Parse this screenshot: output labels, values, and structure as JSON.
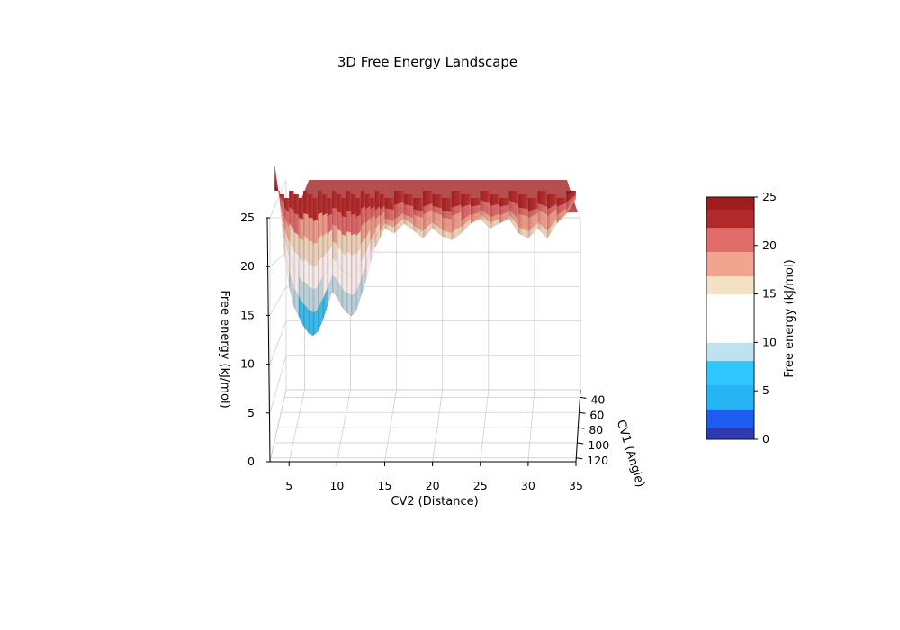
{
  "chart_data": {
    "type": "surface",
    "title": "3D Free Energy Landscape",
    "xlabel": "CV2 (Distance)",
    "ylabel": "CV1 (Angle)",
    "zlabel": "Free energy (kJ/mol)",
    "colorbar_label": "Free energy (kJ/mol)",
    "colormap": [
      "#2e3bb0",
      "#1f5cf0",
      "#26b4f2",
      "#2ec8ff",
      "#bfe3ee",
      "#ffffff",
      "#ffffff",
      "#f4e1c6",
      "#f1a48f",
      "#e06c6c",
      "#b32a2a",
      "#a01d1d"
    ],
    "x_range": [
      3,
      35
    ],
    "y_range": [
      30,
      125
    ],
    "z_range": [
      0,
      25
    ],
    "x_ticks": [
      "5",
      "10",
      "15",
      "20",
      "25",
      "30",
      "35"
    ],
    "y_ticks": [
      "40",
      "60",
      "80",
      "100",
      "120"
    ],
    "z_ticks": [
      "0",
      "5",
      "10",
      "15",
      "20",
      "25"
    ],
    "colorbar_ticks": [
      "0",
      "5",
      "10",
      "15",
      "20",
      "25"
    ],
    "cap_value": 25,
    "basins": [
      {
        "x": 7.5,
        "min_free_energy": 6.0
      },
      {
        "x": 11.5,
        "min_free_energy": 8.0
      }
    ],
    "profile_x": [
      3.5,
      4.0,
      4.5,
      5.0,
      5.5,
      6.0,
      6.5,
      7.0,
      7.5,
      8.0,
      8.5,
      9.0,
      9.5,
      10.0,
      10.5,
      11.0,
      11.5,
      12.0,
      12.5,
      13.0,
      13.5,
      14.0,
      14.5,
      15.0,
      16.0,
      17.0,
      18.0,
      19.0,
      20.0,
      21.0,
      22.0,
      23.0,
      24.0,
      25.0,
      26.0,
      27.0,
      28.0,
      29.0,
      30.0,
      31.0,
      32.0,
      33.0,
      34.0,
      35.0
    ],
    "profile_min_free_energy": [
      23.5,
      20.0,
      14.5,
      11.0,
      9.0,
      8.0,
      7.0,
      6.3,
      6.0,
      6.4,
      7.5,
      9.0,
      10.5,
      10.0,
      9.0,
      8.4,
      8.0,
      8.5,
      10.0,
      11.5,
      13.5,
      15.0,
      16.0,
      17.0,
      16.5,
      17.5,
      16.8,
      16.0,
      17.0,
      16.2,
      15.8,
      16.5,
      17.5,
      18.0,
      17.0,
      17.5,
      18.0,
      16.5,
      16.0,
      17.0,
      16.0,
      17.5,
      18.5,
      20.0
    ]
  }
}
